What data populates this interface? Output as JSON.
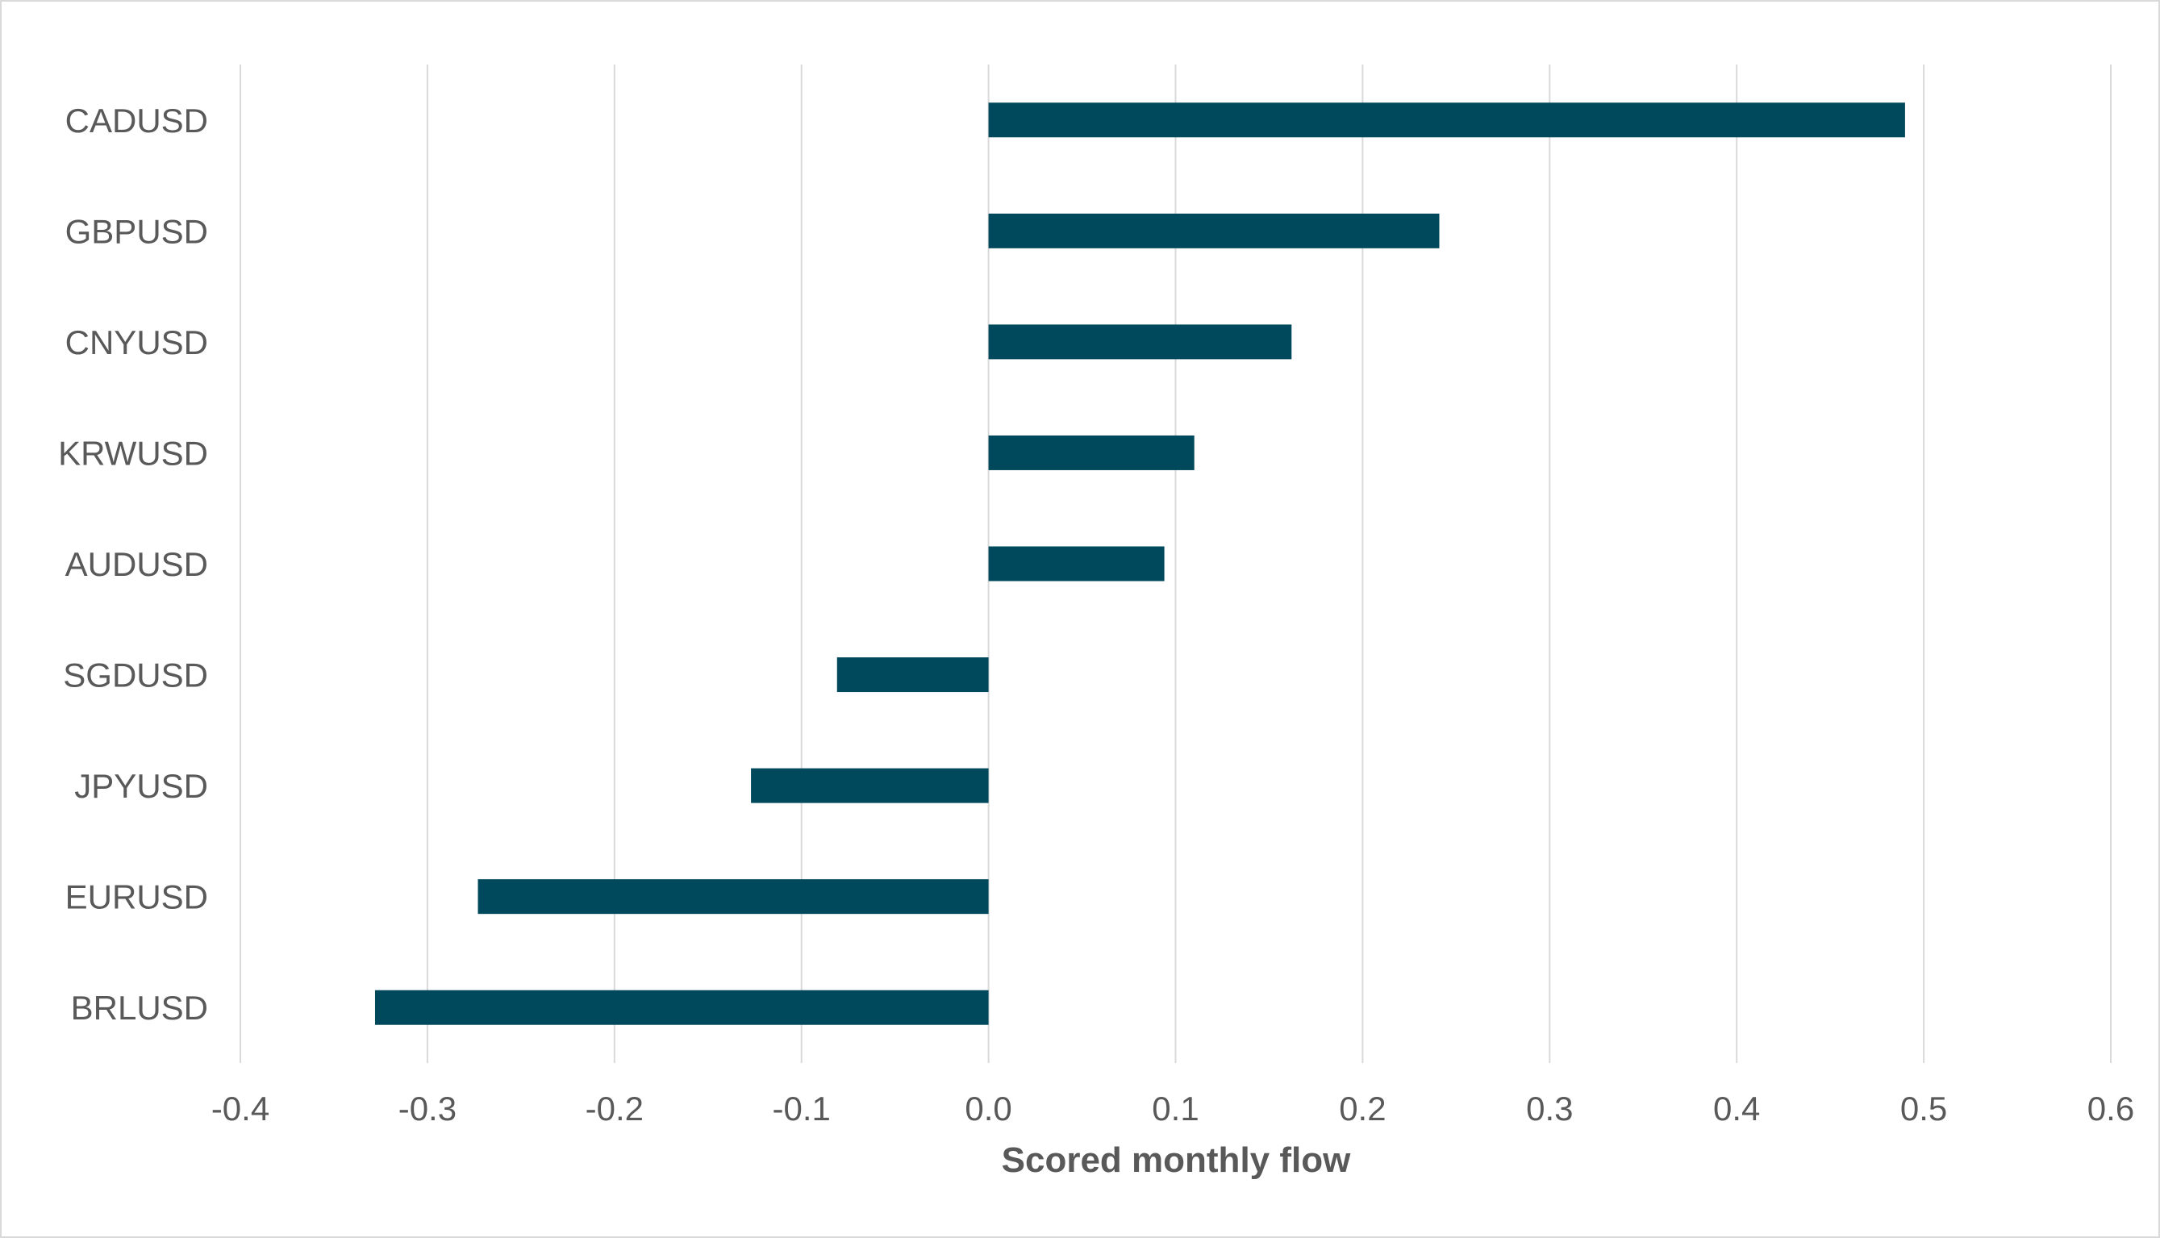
{
  "chart_data": {
    "type": "bar",
    "orientation": "horizontal",
    "title": "",
    "xlabel": "Scored monthly flow",
    "ylabel": "",
    "categories": [
      "CADUSD",
      "GBPUSD",
      "CNYUSD",
      "KRWUSD",
      "AUDUSD",
      "SGDUSD",
      "JPYUSD",
      "EURUSD",
      "BRLUSD"
    ],
    "values": [
      0.49,
      0.241,
      0.162,
      0.11,
      0.094,
      -0.081,
      -0.127,
      -0.273,
      -0.328
    ],
    "xlim": [
      -0.4,
      0.6
    ],
    "xticks": [
      "-0.4",
      "-0.3",
      "-0.2",
      "-0.1",
      "0.0",
      "0.1",
      "0.2",
      "0.3",
      "0.4",
      "0.5",
      "0.6"
    ],
    "grid": "vertical",
    "legend": "none",
    "bar_color": "#00485c",
    "grid_color": "#d9d9d9"
  }
}
